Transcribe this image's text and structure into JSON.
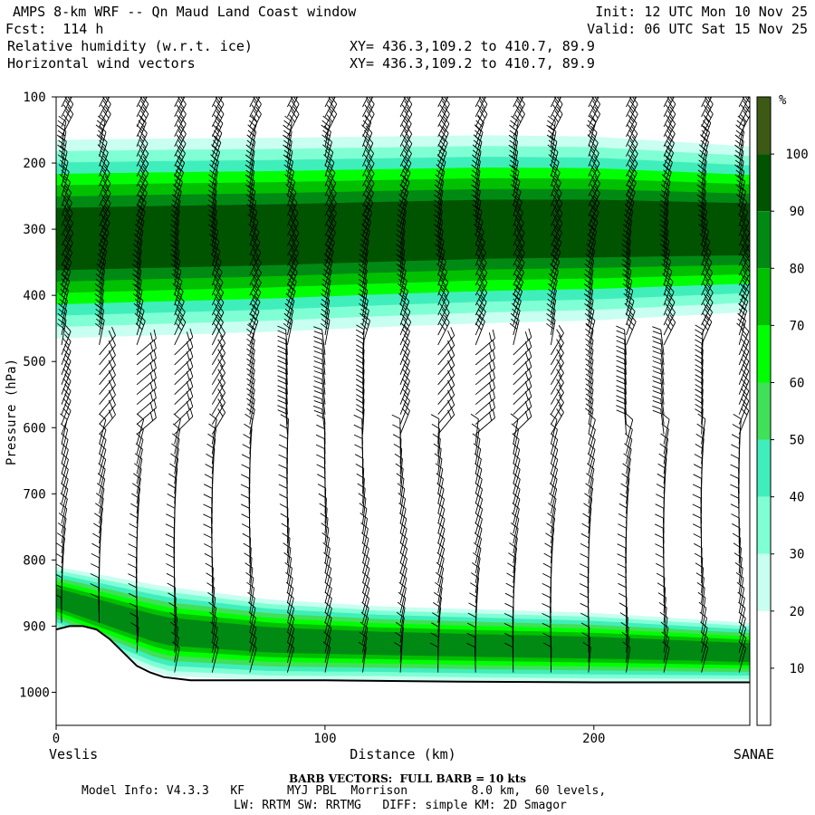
{
  "header": {
    "title": "AMPS 8-km WRF -- Qn Maud Land Coast window",
    "fcst": "Fcst:  114 h",
    "init": "Init: 12 UTC Mon 10 Nov 25",
    "valid": "Valid: 06 UTC Sat 15 Nov 25",
    "field1": "Relative humidity (w.r.t. ice)",
    "field2": "Horizontal wind vectors",
    "xy1": "XY= 436.3,109.2 to 410.7, 89.9",
    "xy2": "XY= 436.3,109.2 to 410.7, 89.9"
  },
  "footer": {
    "barb": "BARB VECTORS:  FULL BARB = 10 kts",
    "model_line1": "Model Info: V4.3.3   KF      MYJ PBL  Morrison         8.0 km,  60 levels,",
    "model_line2": "LW: RRTM SW: RRTMG   DIFF: simple KM: 2D Smagor"
  },
  "chart_data": {
    "type": "heatmap",
    "title": "Relative humidity (w.r.t. ice) and horizontal wind vectors",
    "xlabel": "Distance (km)",
    "ylabel": "Pressure (hPa)",
    "xlim": [
      0,
      258
    ],
    "ylim": [
      1050,
      100
    ],
    "x_ticks": [
      0,
      100,
      200
    ],
    "y_ticks": [
      100,
      200,
      300,
      400,
      500,
      600,
      700,
      800,
      900,
      1000
    ],
    "x_end_labels": {
      "left": "Veslis",
      "right": "SANAE"
    },
    "colorbar": {
      "unit": "%",
      "levels": [
        10,
        20,
        30,
        40,
        50,
        60,
        70,
        80,
        90,
        100
      ],
      "colors": [
        "#ffffff",
        "#ffffff",
        "#ffffff",
        "#c8fff0",
        "#80ffd4",
        "#40eebc",
        "#40e058",
        "#00ff00",
        "#00c000",
        "#008a14",
        "#005400",
        "#3c5a14"
      ]
    },
    "terrain": {
      "x_km": [
        0,
        5,
        10,
        15,
        20,
        25,
        30,
        35,
        40,
        50,
        60,
        80,
        100,
        150,
        200,
        258
      ],
      "p_hpa": [
        905,
        900,
        900,
        905,
        920,
        940,
        960,
        970,
        977,
        982,
        982,
        982,
        982,
        984,
        985,
        985
      ]
    },
    "bands": [
      {
        "name": "upper-moist-layer",
        "rh_max": 100,
        "x_km": [
          0,
          40,
          80,
          120,
          160,
          200,
          258
        ],
        "top_hpa": [
          165,
          163,
          162,
          160,
          158,
          160,
          175
        ],
        "bottom_hpa": [
          465,
          460,
          455,
          448,
          442,
          438,
          425
        ]
      },
      {
        "name": "low-level-moist-layer",
        "rh_max": 90,
        "x_km": [
          0,
          40,
          80,
          120,
          160,
          200,
          258
        ],
        "top_hpa": [
          810,
          840,
          860,
          870,
          875,
          880,
          895
        ],
        "bottom_hpa": [
          905,
          975,
          982,
          982,
          984,
          985,
          985
        ]
      }
    ],
    "barbs": {
      "note": "Wind barbs; full barb = 10 kts",
      "columns_km": [
        0,
        14,
        28,
        42,
        56,
        70,
        84,
        98,
        112,
        126,
        140,
        154,
        168,
        182,
        196,
        210,
        224,
        238,
        252
      ]
    }
  }
}
